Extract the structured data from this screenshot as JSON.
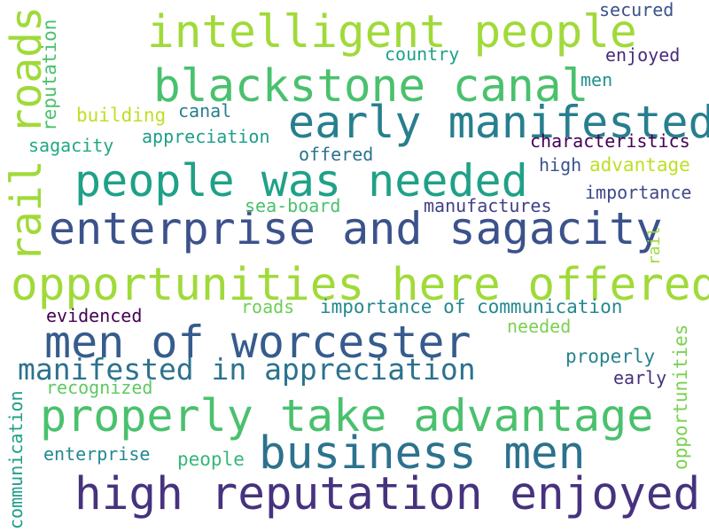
{
  "words": [
    {
      "text": "intelligent people",
      "color": "#a0da39"
    },
    {
      "text": "blackstone canal",
      "color": "#4ac16d"
    },
    {
      "text": "early manifested",
      "color": "#277f8e"
    },
    {
      "text": "people was needed",
      "color": "#1fa187"
    },
    {
      "text": "enterprise and sagacity",
      "color": "#3b528b"
    },
    {
      "text": "opportunities here offered",
      "color": "#a0da39"
    },
    {
      "text": "men of worcester",
      "color": "#365c8d"
    },
    {
      "text": "manifested in appreciation",
      "color": "#2c728e"
    },
    {
      "text": "properly take advantage",
      "color": "#4ac16d"
    },
    {
      "text": "business men",
      "color": "#2c728e"
    },
    {
      "text": "high reputation enjoyed",
      "color": "#46327e"
    },
    {
      "text": "rail roads",
      "color": "#a0da39"
    },
    {
      "text": "reputation",
      "color": "#4ac16d"
    },
    {
      "text": "communication",
      "color": "#1f9e89"
    },
    {
      "text": "opportunities",
      "color": "#7ad151"
    },
    {
      "text": "rail",
      "color": "#9fda3a"
    },
    {
      "text": "secured",
      "color": "#3b528b"
    },
    {
      "text": "country",
      "color": "#1fa187"
    },
    {
      "text": "enjoyed",
      "color": "#472d7b"
    },
    {
      "text": "men",
      "color": "#21918c"
    },
    {
      "text": "building",
      "color": "#bddf26"
    },
    {
      "text": "canal",
      "color": "#277f8e"
    },
    {
      "text": "appreciation",
      "color": "#1f9e89"
    },
    {
      "text": "sagacity",
      "color": "#22a884"
    },
    {
      "text": "characteristics",
      "color": "#440154"
    },
    {
      "text": "offered",
      "color": "#2c728e"
    },
    {
      "text": "high",
      "color": "#3b528b"
    },
    {
      "text": "advantage",
      "color": "#bddf26"
    },
    {
      "text": "importance",
      "color": "#3e4989"
    },
    {
      "text": "sea-board",
      "color": "#4ac16d"
    },
    {
      "text": "manufactures",
      "color": "#424086"
    },
    {
      "text": "evidenced",
      "color": "#440154"
    },
    {
      "text": "roads",
      "color": "#6ece58"
    },
    {
      "text": "importance of communication",
      "color": "#23898e"
    },
    {
      "text": "needed",
      "color": "#7ad151"
    },
    {
      "text": "recognized",
      "color": "#5ec962"
    },
    {
      "text": "properly",
      "color": "#26828e"
    },
    {
      "text": "early",
      "color": "#46327e"
    },
    {
      "text": "enterprise",
      "color": "#23898e"
    },
    {
      "text": "people",
      "color": "#35b779"
    }
  ]
}
